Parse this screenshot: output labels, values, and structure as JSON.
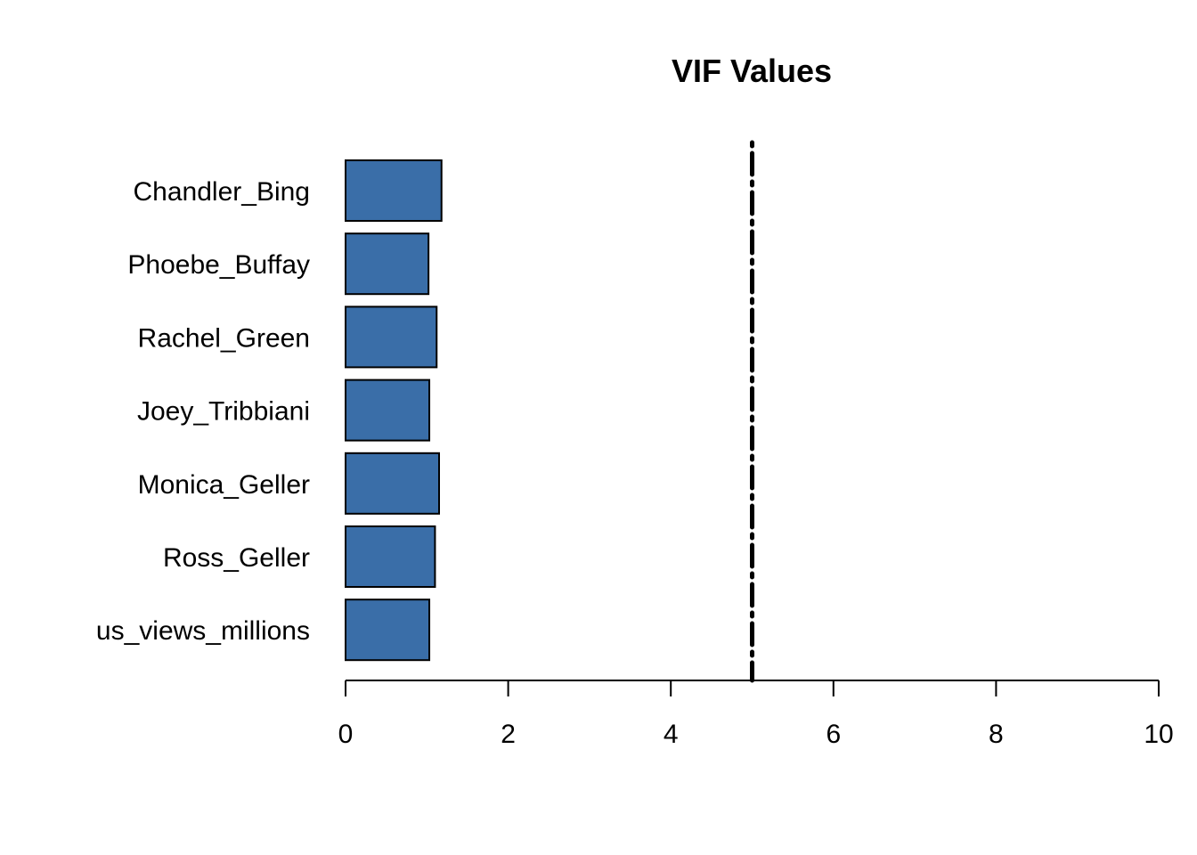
{
  "chart_data": {
    "type": "bar",
    "orientation": "horizontal",
    "title": "VIF Values",
    "categories": [
      "Chandler_Bing",
      "Phoebe_Buffay",
      "Rachel_Green",
      "Joey_Tribbiani",
      "Monica_Geller",
      "Ross_Geller",
      "us_views_millions"
    ],
    "values": [
      1.18,
      1.02,
      1.12,
      1.03,
      1.15,
      1.1,
      1.03
    ],
    "xlabel": "",
    "ylabel": "",
    "xlim": [
      0,
      10
    ],
    "xticks": [
      0,
      2,
      4,
      6,
      8,
      10
    ],
    "xtick_labels": [
      "0",
      "2",
      "4",
      "6",
      "8",
      "10"
    ],
    "reference_line": {
      "value": 5,
      "style": "dot-dash"
    },
    "bar_color": "#3a6ea8",
    "bar_edge_color": "#000000",
    "grid": false,
    "legend": "none"
  }
}
